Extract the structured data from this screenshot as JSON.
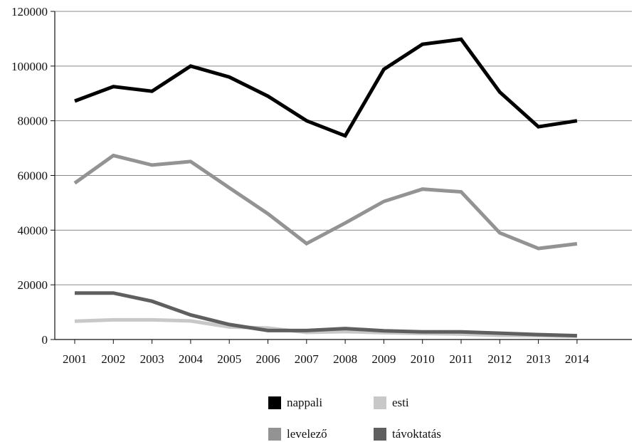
{
  "chart_data": {
    "type": "line",
    "categories": [
      "2001",
      "2002",
      "2003",
      "2004",
      "2005",
      "2006",
      "2007",
      "2008",
      "2009",
      "2010",
      "2011",
      "2012",
      "2013",
      "2014"
    ],
    "ylim": [
      0,
      120000
    ],
    "yticks": [
      "0",
      "20000",
      "40000",
      "60000",
      "80000",
      "100000",
      "120000"
    ],
    "grid": true,
    "legend_position": "bottom",
    "series": [
      {
        "name": "nappali",
        "color": "#000000",
        "values": [
          87200,
          92500,
          90800,
          100000,
          96000,
          89000,
          80000,
          74500,
          98800,
          108000,
          109800,
          90500,
          77800,
          80000
        ]
      },
      {
        "name": "esti",
        "color": "#c8c8c8",
        "values": [
          6700,
          7200,
          7200,
          6800,
          4600,
          4200,
          2600,
          2900,
          2500,
          2200,
          2000,
          1500,
          1400,
          1200
        ]
      },
      {
        "name": "levelező",
        "color": "#939393",
        "values": [
          57200,
          67300,
          63800,
          65100,
          55500,
          46000,
          35100,
          42600,
          50500,
          55000,
          54000,
          39000,
          33300,
          35000
        ]
      },
      {
        "name": "távoktatás",
        "color": "#5f5f5f",
        "values": [
          17000,
          17000,
          14000,
          9000,
          5500,
          3300,
          3300,
          4000,
          3200,
          2800,
          2800,
          2300,
          1800,
          1400
        ]
      }
    ]
  }
}
